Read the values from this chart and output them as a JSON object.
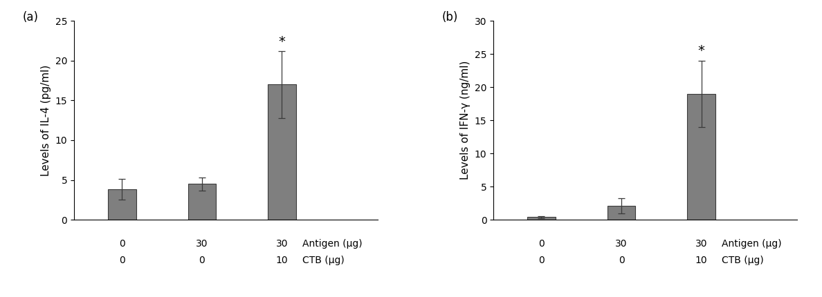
{
  "panel_a": {
    "label": "(a)",
    "values": [
      3.8,
      4.5,
      17.0
    ],
    "errors": [
      1.3,
      0.8,
      4.2
    ],
    "ylabel": "Levels of IL-4 (pg/ml)",
    "ylim": [
      0,
      25
    ],
    "yticks": [
      0,
      5,
      10,
      15,
      20,
      25
    ],
    "antigen_labels": [
      "0",
      "30",
      "30"
    ],
    "ctb_labels": [
      "0",
      "0",
      "10"
    ],
    "star_bar_index": 2,
    "bar_color": "#7f7f7f",
    "bar_width": 0.35
  },
  "panel_b": {
    "label": "(b)",
    "values": [
      0.4,
      2.1,
      19.0
    ],
    "errors": [
      0.15,
      1.1,
      5.0
    ],
    "ylabel": "Levels of IFN-γ (ng/ml)",
    "ylim": [
      0,
      30
    ],
    "yticks": [
      0,
      5,
      10,
      15,
      20,
      25,
      30
    ],
    "antigen_labels": [
      "0",
      "30",
      "30"
    ],
    "ctb_labels": [
      "0",
      "0",
      "10"
    ],
    "star_bar_index": 2,
    "bar_color": "#7f7f7f",
    "bar_width": 0.35
  },
  "antigen_row_label": "Antigen (μg)",
  "ctb_row_label": "CTB (μg)",
  "background_color": "#ffffff",
  "bar_edge_color": "#3a3a3a",
  "error_color": "#3a3a3a",
  "font_size": 11,
  "label_font_size": 11,
  "tick_font_size": 10
}
